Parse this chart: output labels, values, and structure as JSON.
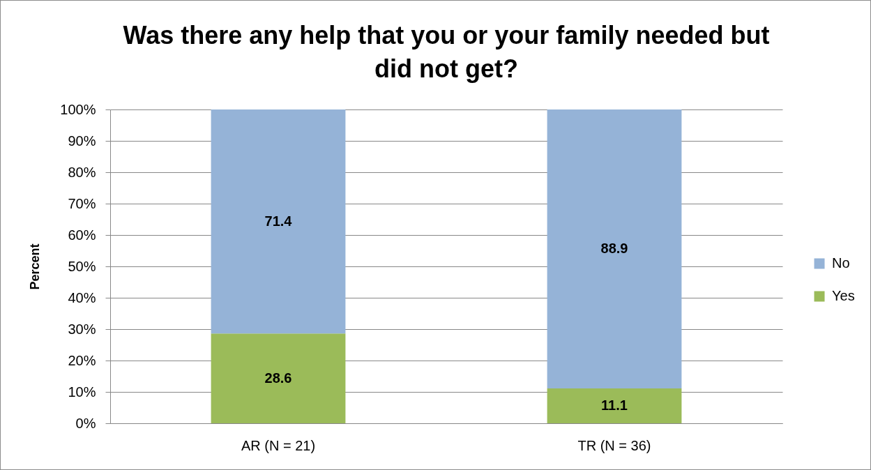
{
  "chart_data": {
    "type": "bar",
    "title": "Was there any help that you or your family needed but did not get?",
    "ylabel": "Percent",
    "categories": [
      "AR (N = 21)",
      "TR (N = 36)"
    ],
    "series": [
      {
        "name": "Yes",
        "color": "#9bbb59",
        "values": [
          28.6,
          11.1
        ]
      },
      {
        "name": "No",
        "color": "#95b3d7",
        "values": [
          71.4,
          88.9
        ]
      }
    ],
    "stacked": true,
    "ylim": [
      0,
      100
    ],
    "yticks": [
      {
        "value": 0,
        "label": "0%"
      },
      {
        "value": 10,
        "label": "10%"
      },
      {
        "value": 20,
        "label": "20%"
      },
      {
        "value": 30,
        "label": "30%"
      },
      {
        "value": 40,
        "label": "40%"
      },
      {
        "value": 50,
        "label": "50%"
      },
      {
        "value": 60,
        "label": "60%"
      },
      {
        "value": 70,
        "label": "70%"
      },
      {
        "value": 80,
        "label": "80%"
      },
      {
        "value": 90,
        "label": "90%"
      },
      {
        "value": 100,
        "label": "100%"
      }
    ],
    "grid": "y",
    "legend": "right",
    "data_labels": true
  }
}
